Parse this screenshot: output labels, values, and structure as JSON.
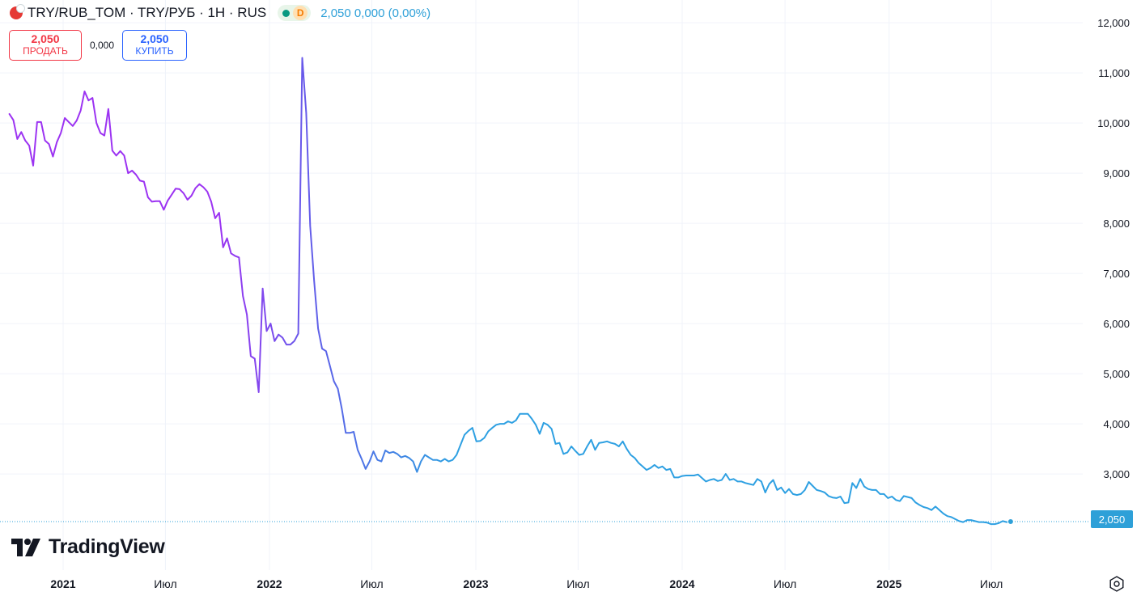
{
  "header": {
    "title": "TRY/RUB_TOM · TRY/РУБ · 1Н · RUS",
    "delay_badge": "D",
    "quote": "2,050  0,000 (0,00%)",
    "flag_icon": "turkey-flag-icon"
  },
  "trade": {
    "sell_price": "2,050",
    "sell_label": "ПРОДАТЬ",
    "spread": "0,000",
    "buy_price": "2,050",
    "buy_label": "КУПИТЬ"
  },
  "logo": {
    "text": "TradingView",
    "icon": "tradingview-logo-icon"
  },
  "last_price_label": "2,050",
  "colors": {
    "line_start": "#9c33f2",
    "line_mid": "#5b63e8",
    "line_end": "#2ea0e2",
    "grid": "#f0f3fa",
    "axis_text": "#131722",
    "last_price": "#2ea0d8"
  },
  "chart_data": {
    "type": "line",
    "title": "TRY/RUB_TOM · TRY/РУБ · 1Н · RUS",
    "interval": "1 week",
    "y_scale": "linear",
    "ylim": [
      1.8,
      12.3
    ],
    "y_ticks": [
      "3,000",
      "4,000",
      "5,000",
      "6,000",
      "7,000",
      "8,000",
      "9,000",
      "10,000",
      "11,000",
      "12,000"
    ],
    "x_ticks": [
      {
        "date": "2021-01-01",
        "label": "2021",
        "bold": true
      },
      {
        "date": "2021-07-01",
        "label": "Июл",
        "bold": false
      },
      {
        "date": "2022-01-01",
        "label": "2022",
        "bold": true
      },
      {
        "date": "2022-07-01",
        "label": "Июл",
        "bold": false
      },
      {
        "date": "2023-01-01",
        "label": "2023",
        "bold": true
      },
      {
        "date": "2023-07-01",
        "label": "Июл",
        "bold": false
      },
      {
        "date": "2024-01-01",
        "label": "2024",
        "bold": true
      },
      {
        "date": "2024-07-01",
        "label": "Июл",
        "bold": false
      },
      {
        "date": "2025-01-01",
        "label": "2025",
        "bold": true
      },
      {
        "date": "2025-07-01",
        "label": "Июл",
        "bold": false
      }
    ],
    "grid": true,
    "last_price": 2.05,
    "series": [
      {
        "name": "TRY/RUB_TOM",
        "points": [
          [
            "2020-09-28",
            10.18
          ],
          [
            "2020-10-05",
            10.06
          ],
          [
            "2020-10-12",
            9.68
          ],
          [
            "2020-10-19",
            9.82
          ],
          [
            "2020-10-26",
            9.65
          ],
          [
            "2020-11-02",
            9.55
          ],
          [
            "2020-11-09",
            9.15
          ],
          [
            "2020-11-16",
            10.02
          ],
          [
            "2020-11-23",
            10.02
          ],
          [
            "2020-11-30",
            9.65
          ],
          [
            "2020-12-07",
            9.58
          ],
          [
            "2020-12-14",
            9.33
          ],
          [
            "2020-12-21",
            9.62
          ],
          [
            "2020-12-28",
            9.8
          ],
          [
            "2021-01-04",
            10.1
          ],
          [
            "2021-01-11",
            10.02
          ],
          [
            "2021-01-18",
            9.94
          ],
          [
            "2021-01-25",
            10.05
          ],
          [
            "2021-02-01",
            10.25
          ],
          [
            "2021-02-08",
            10.63
          ],
          [
            "2021-02-15",
            10.45
          ],
          [
            "2021-02-22",
            10.5
          ],
          [
            "2021-03-01",
            10.0
          ],
          [
            "2021-03-08",
            9.8
          ],
          [
            "2021-03-15",
            9.75
          ],
          [
            "2021-03-22",
            10.28
          ],
          [
            "2021-03-29",
            9.45
          ],
          [
            "2021-04-05",
            9.35
          ],
          [
            "2021-04-12",
            9.44
          ],
          [
            "2021-04-19",
            9.35
          ],
          [
            "2021-04-26",
            9.0
          ],
          [
            "2021-05-03",
            9.05
          ],
          [
            "2021-05-10",
            8.97
          ],
          [
            "2021-05-17",
            8.85
          ],
          [
            "2021-05-24",
            8.83
          ],
          [
            "2021-05-31",
            8.52
          ],
          [
            "2021-06-07",
            8.43
          ],
          [
            "2021-06-14",
            8.44
          ],
          [
            "2021-06-21",
            8.44
          ],
          [
            "2021-06-28",
            8.27
          ],
          [
            "2021-07-05",
            8.45
          ],
          [
            "2021-07-12",
            8.57
          ],
          [
            "2021-07-19",
            8.69
          ],
          [
            "2021-07-26",
            8.68
          ],
          [
            "2021-08-02",
            8.6
          ],
          [
            "2021-08-09",
            8.47
          ],
          [
            "2021-08-16",
            8.55
          ],
          [
            "2021-08-23",
            8.7
          ],
          [
            "2021-08-30",
            8.78
          ],
          [
            "2021-09-06",
            8.72
          ],
          [
            "2021-09-13",
            8.63
          ],
          [
            "2021-09-20",
            8.43
          ],
          [
            "2021-09-27",
            8.1
          ],
          [
            "2021-10-04",
            8.21
          ],
          [
            "2021-10-11",
            7.52
          ],
          [
            "2021-10-18",
            7.7
          ],
          [
            "2021-10-25",
            7.4
          ],
          [
            "2021-11-01",
            7.35
          ],
          [
            "2021-11-08",
            7.32
          ],
          [
            "2021-11-15",
            6.55
          ],
          [
            "2021-11-22",
            6.18
          ],
          [
            "2021-11-29",
            5.35
          ],
          [
            "2021-12-06",
            5.3
          ],
          [
            "2021-12-13",
            4.63
          ],
          [
            "2021-12-20",
            6.7
          ],
          [
            "2021-12-27",
            5.85
          ],
          [
            "2022-01-03",
            6.0
          ],
          [
            "2022-01-10",
            5.65
          ],
          [
            "2022-01-17",
            5.78
          ],
          [
            "2022-01-24",
            5.72
          ],
          [
            "2022-01-31",
            5.58
          ],
          [
            "2022-02-07",
            5.58
          ],
          [
            "2022-02-14",
            5.65
          ],
          [
            "2022-02-21",
            5.8
          ],
          [
            "2022-02-28",
            11.3
          ],
          [
            "2022-03-07",
            10.2
          ],
          [
            "2022-03-14",
            7.95
          ],
          [
            "2022-03-21",
            6.85
          ],
          [
            "2022-03-28",
            5.9
          ],
          [
            "2022-04-04",
            5.5
          ],
          [
            "2022-04-11",
            5.45
          ],
          [
            "2022-04-18",
            5.15
          ],
          [
            "2022-04-25",
            4.85
          ],
          [
            "2022-05-02",
            4.7
          ],
          [
            "2022-05-09",
            4.3
          ],
          [
            "2022-05-16",
            3.82
          ],
          [
            "2022-05-23",
            3.82
          ],
          [
            "2022-05-30",
            3.84
          ],
          [
            "2022-06-06",
            3.48
          ],
          [
            "2022-06-13",
            3.3
          ],
          [
            "2022-06-20",
            3.1
          ],
          [
            "2022-06-27",
            3.25
          ],
          [
            "2022-07-04",
            3.45
          ],
          [
            "2022-07-11",
            3.28
          ],
          [
            "2022-07-18",
            3.25
          ],
          [
            "2022-07-25",
            3.47
          ],
          [
            "2022-08-01",
            3.42
          ],
          [
            "2022-08-08",
            3.44
          ],
          [
            "2022-08-15",
            3.4
          ],
          [
            "2022-08-22",
            3.33
          ],
          [
            "2022-08-29",
            3.36
          ],
          [
            "2022-09-05",
            3.32
          ],
          [
            "2022-09-12",
            3.25
          ],
          [
            "2022-09-19",
            3.04
          ],
          [
            "2022-09-26",
            3.25
          ],
          [
            "2022-10-03",
            3.38
          ],
          [
            "2022-10-10",
            3.33
          ],
          [
            "2022-10-17",
            3.28
          ],
          [
            "2022-10-24",
            3.28
          ],
          [
            "2022-10-31",
            3.25
          ],
          [
            "2022-11-07",
            3.3
          ],
          [
            "2022-11-14",
            3.25
          ],
          [
            "2022-11-21",
            3.28
          ],
          [
            "2022-11-28",
            3.38
          ],
          [
            "2022-12-05",
            3.58
          ],
          [
            "2022-12-12",
            3.78
          ],
          [
            "2022-12-19",
            3.86
          ],
          [
            "2022-12-26",
            3.92
          ],
          [
            "2023-01-02",
            3.65
          ],
          [
            "2023-01-09",
            3.66
          ],
          [
            "2023-01-16",
            3.72
          ],
          [
            "2023-01-23",
            3.85
          ],
          [
            "2023-01-30",
            3.92
          ],
          [
            "2023-02-06",
            3.98
          ],
          [
            "2023-02-13",
            4.0
          ],
          [
            "2023-02-20",
            4.0
          ],
          [
            "2023-02-27",
            4.05
          ],
          [
            "2023-03-06",
            4.02
          ],
          [
            "2023-03-13",
            4.07
          ],
          [
            "2023-03-20",
            4.2
          ],
          [
            "2023-03-27",
            4.2
          ],
          [
            "2023-04-03",
            4.2
          ],
          [
            "2023-04-10",
            4.1
          ],
          [
            "2023-04-17",
            3.98
          ],
          [
            "2023-04-24",
            3.8
          ],
          [
            "2023-05-01",
            4.02
          ],
          [
            "2023-05-08",
            3.98
          ],
          [
            "2023-05-15",
            3.9
          ],
          [
            "2023-05-22",
            3.6
          ],
          [
            "2023-05-29",
            3.62
          ],
          [
            "2023-06-05",
            3.4
          ],
          [
            "2023-06-12",
            3.43
          ],
          [
            "2023-06-19",
            3.55
          ],
          [
            "2023-06-26",
            3.46
          ],
          [
            "2023-07-03",
            3.38
          ],
          [
            "2023-07-10",
            3.4
          ],
          [
            "2023-07-17",
            3.55
          ],
          [
            "2023-07-24",
            3.68
          ],
          [
            "2023-07-31",
            3.48
          ],
          [
            "2023-08-07",
            3.62
          ],
          [
            "2023-08-14",
            3.63
          ],
          [
            "2023-08-21",
            3.65
          ],
          [
            "2023-08-28",
            3.62
          ],
          [
            "2023-09-04",
            3.6
          ],
          [
            "2023-09-11",
            3.55
          ],
          [
            "2023-09-18",
            3.65
          ],
          [
            "2023-09-25",
            3.5
          ],
          [
            "2023-10-02",
            3.38
          ],
          [
            "2023-10-09",
            3.32
          ],
          [
            "2023-10-16",
            3.22
          ],
          [
            "2023-10-23",
            3.15
          ],
          [
            "2023-10-30",
            3.08
          ],
          [
            "2023-11-06",
            3.12
          ],
          [
            "2023-11-13",
            3.18
          ],
          [
            "2023-11-20",
            3.12
          ],
          [
            "2023-11-27",
            3.15
          ],
          [
            "2023-12-04",
            3.08
          ],
          [
            "2023-12-11",
            3.1
          ],
          [
            "2023-12-18",
            2.93
          ],
          [
            "2023-12-25",
            2.93
          ],
          [
            "2024-01-01",
            2.96
          ],
          [
            "2024-01-08",
            2.97
          ],
          [
            "2024-01-15",
            2.97
          ],
          [
            "2024-01-22",
            2.97
          ],
          [
            "2024-01-29",
            2.99
          ],
          [
            "2024-02-05",
            2.92
          ],
          [
            "2024-02-12",
            2.85
          ],
          [
            "2024-02-19",
            2.88
          ],
          [
            "2024-02-26",
            2.9
          ],
          [
            "2024-03-04",
            2.86
          ],
          [
            "2024-03-11",
            2.88
          ],
          [
            "2024-03-18",
            3.0
          ],
          [
            "2024-03-25",
            2.88
          ],
          [
            "2024-04-01",
            2.9
          ],
          [
            "2024-04-08",
            2.85
          ],
          [
            "2024-04-15",
            2.85
          ],
          [
            "2024-04-22",
            2.82
          ],
          [
            "2024-04-29",
            2.8
          ],
          [
            "2024-05-06",
            2.78
          ],
          [
            "2024-05-13",
            2.9
          ],
          [
            "2024-05-20",
            2.85
          ],
          [
            "2024-05-27",
            2.63
          ],
          [
            "2024-06-03",
            2.8
          ],
          [
            "2024-06-10",
            2.88
          ],
          [
            "2024-06-17",
            2.68
          ],
          [
            "2024-06-24",
            2.73
          ],
          [
            "2024-07-01",
            2.62
          ],
          [
            "2024-07-08",
            2.7
          ],
          [
            "2024-07-15",
            2.6
          ],
          [
            "2024-07-22",
            2.58
          ],
          [
            "2024-07-29",
            2.6
          ],
          [
            "2024-08-05",
            2.68
          ],
          [
            "2024-08-12",
            2.84
          ],
          [
            "2024-08-19",
            2.76
          ],
          [
            "2024-08-26",
            2.68
          ],
          [
            "2024-09-02",
            2.66
          ],
          [
            "2024-09-09",
            2.63
          ],
          [
            "2024-09-16",
            2.56
          ],
          [
            "2024-09-23",
            2.53
          ],
          [
            "2024-09-30",
            2.52
          ],
          [
            "2024-10-07",
            2.55
          ],
          [
            "2024-10-14",
            2.42
          ],
          [
            "2024-10-21",
            2.43
          ],
          [
            "2024-10-28",
            2.82
          ],
          [
            "2024-11-04",
            2.72
          ],
          [
            "2024-11-11",
            2.9
          ],
          [
            "2024-11-18",
            2.75
          ],
          [
            "2024-11-25",
            2.7
          ],
          [
            "2024-12-02",
            2.68
          ],
          [
            "2024-12-09",
            2.68
          ],
          [
            "2024-12-16",
            2.6
          ],
          [
            "2024-12-23",
            2.6
          ],
          [
            "2024-12-30",
            2.52
          ],
          [
            "2025-01-06",
            2.55
          ],
          [
            "2025-01-13",
            2.48
          ],
          [
            "2025-01-20",
            2.46
          ],
          [
            "2025-01-27",
            2.56
          ],
          [
            "2025-02-03",
            2.54
          ],
          [
            "2025-02-10",
            2.52
          ],
          [
            "2025-02-17",
            2.43
          ],
          [
            "2025-02-24",
            2.38
          ],
          [
            "2025-03-03",
            2.34
          ],
          [
            "2025-03-10",
            2.32
          ],
          [
            "2025-03-17",
            2.28
          ],
          [
            "2025-03-24",
            2.35
          ],
          [
            "2025-03-31",
            2.28
          ],
          [
            "2025-04-07",
            2.21
          ],
          [
            "2025-04-14",
            2.16
          ],
          [
            "2025-04-21",
            2.14
          ],
          [
            "2025-04-28",
            2.1
          ],
          [
            "2025-05-05",
            2.06
          ],
          [
            "2025-05-12",
            2.04
          ],
          [
            "2025-05-19",
            2.08
          ],
          [
            "2025-05-26",
            2.08
          ],
          [
            "2025-06-02",
            2.06
          ],
          [
            "2025-06-09",
            2.04
          ],
          [
            "2025-06-16",
            2.04
          ],
          [
            "2025-06-23",
            2.03
          ],
          [
            "2025-06-30",
            2.0
          ],
          [
            "2025-07-07",
            2.0
          ],
          [
            "2025-07-14",
            2.02
          ],
          [
            "2025-07-21",
            2.06
          ],
          [
            "2025-07-28",
            2.04
          ],
          [
            "2025-08-04",
            2.05
          ]
        ]
      }
    ]
  }
}
